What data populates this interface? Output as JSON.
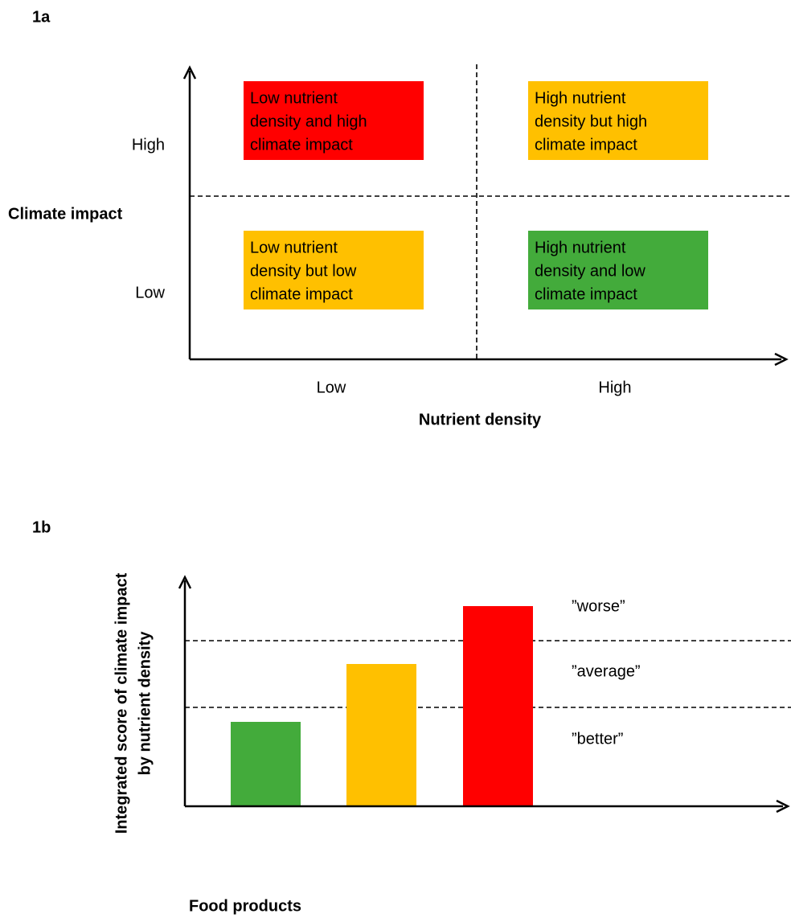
{
  "panel_a": {
    "label": "1a",
    "y_axis": {
      "title": "Climate impact",
      "labels": [
        "High",
        "Low"
      ]
    },
    "x_axis": {
      "title": "Nutrient density",
      "labels": [
        "Low",
        "High"
      ]
    },
    "quadrants": [
      {
        "lines": [
          "Low nutrient",
          "density and high",
          "climate impact"
        ]
      },
      {
        "lines": [
          "High nutrient",
          "density but high",
          "climate impact"
        ]
      },
      {
        "lines": [
          "Low nutrient",
          "density but low",
          "climate impact"
        ]
      },
      {
        "lines": [
          "High nutrient",
          "density and low",
          "climate impact"
        ]
      }
    ]
  },
  "panel_b": {
    "label": "1b",
    "y_axis": {
      "title_lines": [
        "Integrated score of climate impact",
        "by nutrient density"
      ]
    },
    "x_axis": {
      "title": "Food products"
    },
    "zones": [
      "”worse”",
      "”average”",
      "”better”"
    ]
  }
}
